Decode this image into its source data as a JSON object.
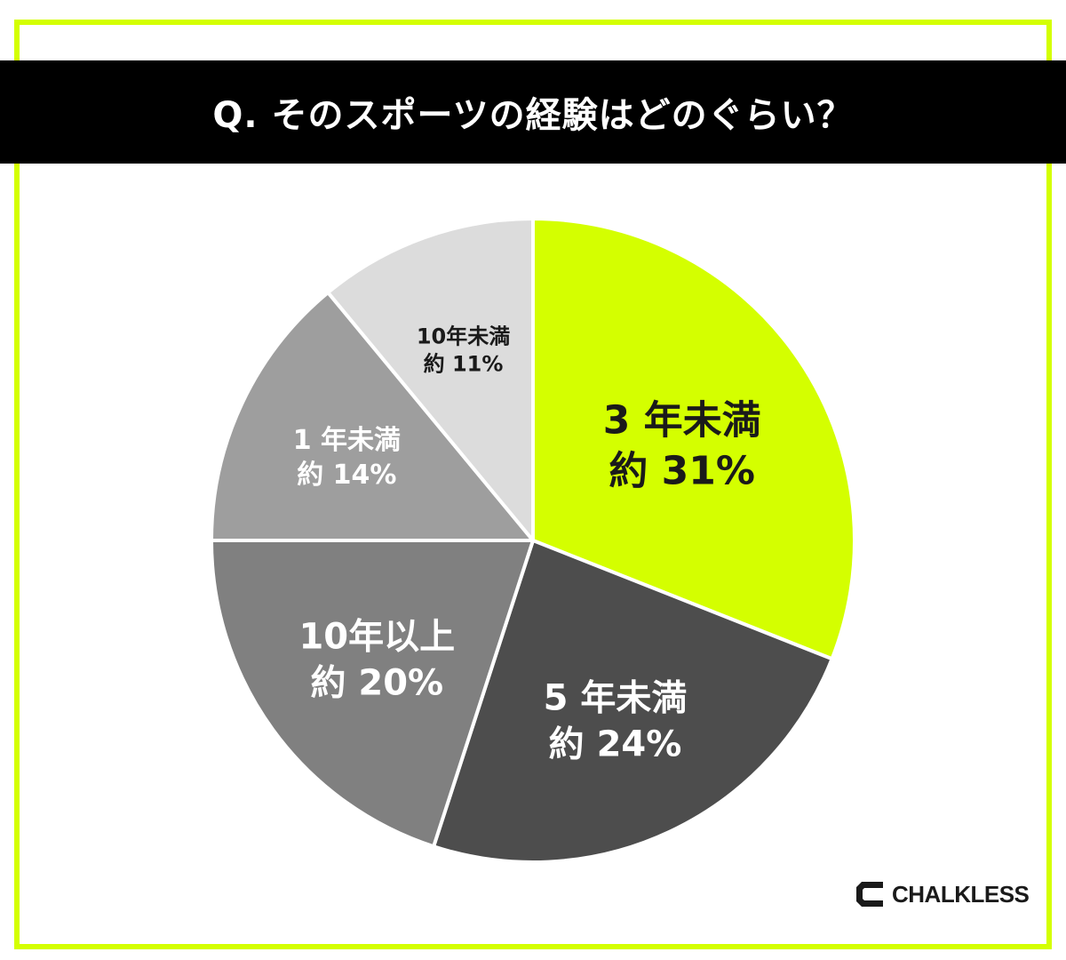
{
  "header": {
    "title": "Q. そのスポーツの経験はどのぐらい？"
  },
  "chart_data": {
    "type": "pie",
    "start_angle_deg": 0,
    "direction": "clockwise",
    "slices": [
      {
        "label": "3 年未満",
        "value_label": "約 31%",
        "value": 31,
        "color": "#d4ff00",
        "text_color": "#1a1a1a"
      },
      {
        "label": "5 年未満",
        "value_label": "約 24%",
        "value": 24,
        "color": "#4d4d4d",
        "text_color": "#ffffff"
      },
      {
        "label": "10年以上",
        "value_label": "約 20%",
        "value": 20,
        "color": "#808080",
        "text_color": "#ffffff"
      },
      {
        "label": "1 年未満",
        "value_label": "約 14%",
        "value": 14,
        "color": "#9e9e9e",
        "text_color": "#ffffff"
      },
      {
        "label": "10年未満",
        "value_label": "約 11%",
        "value": 11,
        "color": "#dcdcdc",
        "text_color": "#1a1a1a"
      }
    ]
  },
  "brand": {
    "name": "CHALKLESS",
    "accent_color": "#d4ff00"
  }
}
